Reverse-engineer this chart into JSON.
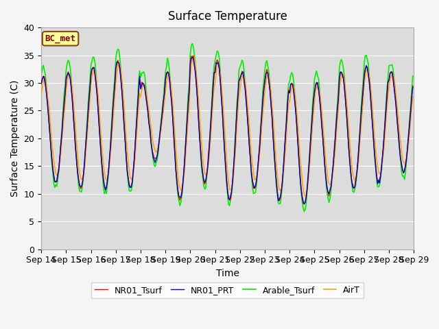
{
  "title": "Surface Temperature",
  "xlabel": "Time",
  "ylabel": "Surface Temperature (C)",
  "annotation": "BC_met",
  "ylim": [
    0,
    40
  ],
  "yticks": [
    0,
    5,
    10,
    15,
    20,
    25,
    30,
    35,
    40
  ],
  "xtick_labels": [
    "Sep 14",
    "Sep 15",
    "Sep 16",
    "Sep 17",
    "Sep 18",
    "Sep 19",
    "Sep 20",
    "Sep 21",
    "Sep 22",
    "Sep 23",
    "Sep 24",
    "Sep 25",
    "Sep 26",
    "Sep 27",
    "Sep 28",
    "Sep 29"
  ],
  "line_colors": {
    "NR01_Tsurf": "#ff0000",
    "NR01_PRT": "#0000cd",
    "Arable_Tsurf": "#00ee00",
    "AirT": "#ffa500"
  },
  "plot_bg": "#dcdcdc",
  "fig_bg": "#f5f5f5",
  "annotation_text_color": "#8b0000",
  "annotation_bg": "#ffff99",
  "annotation_edge": "#8b4513",
  "num_days": 15,
  "day_mins": [
    12,
    11,
    11,
    11,
    16,
    9,
    12,
    9,
    11,
    9,
    8,
    10,
    11,
    12,
    14
  ],
  "day_maxs": [
    31,
    32,
    33,
    34,
    30,
    32,
    35,
    34,
    32,
    32,
    30,
    30,
    32,
    33,
    32
  ],
  "title_fontsize": 12,
  "label_fontsize": 10,
  "tick_fontsize": 9
}
